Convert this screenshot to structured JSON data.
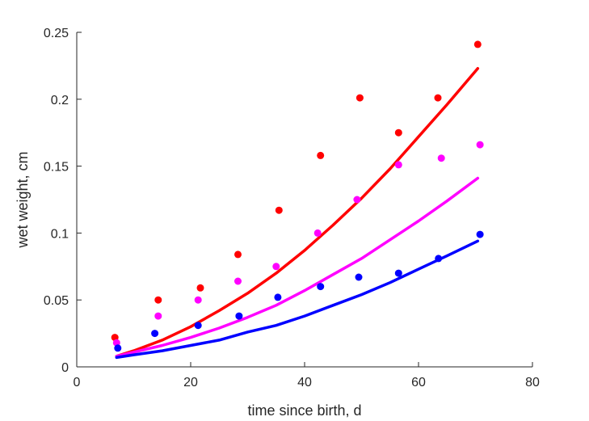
{
  "chart_data": {
    "type": "scatter",
    "title": "",
    "xlabel": "time since birth, d",
    "ylabel": "wet weight, cm",
    "xlim": [
      0,
      80
    ],
    "ylim": [
      0,
      0.25
    ],
    "xticks": [
      0,
      20,
      40,
      60,
      80
    ],
    "yticks": [
      0,
      0.05,
      0.1,
      0.15,
      0.2,
      0.25
    ],
    "xtick_labels": [
      "0",
      "20",
      "40",
      "60",
      "80"
    ],
    "ytick_labels": [
      "0",
      "0.05",
      "0.1",
      "0.15",
      "0.2",
      "0.25"
    ],
    "grid": false,
    "legend": "none",
    "series": [
      {
        "color": "#ff0000",
        "points": {
          "x": [
            6.7,
            14.3,
            21.7,
            28.3,
            35.5,
            42.8,
            49.7,
            56.5,
            63.4,
            70.4
          ],
          "y": [
            0.022,
            0.05,
            0.059,
            0.084,
            0.117,
            0.158,
            0.201,
            0.175,
            0.201,
            0.241
          ]
        },
        "fit": {
          "x": [
            7,
            10,
            15,
            20,
            25,
            30,
            35,
            40,
            45,
            50,
            55,
            60,
            65,
            70.4
          ],
          "y": [
            0.008,
            0.012,
            0.02,
            0.03,
            0.042,
            0.055,
            0.07,
            0.087,
            0.106,
            0.126,
            0.148,
            0.172,
            0.196,
            0.223
          ]
        }
      },
      {
        "color": "#ff00ff",
        "points": {
          "x": [
            7.0,
            14.3,
            21.3,
            28.3,
            35.0,
            42.3,
            49.2,
            56.5,
            64.0,
            70.8
          ],
          "y": [
            0.018,
            0.038,
            0.05,
            0.064,
            0.075,
            0.1,
            0.125,
            0.151,
            0.156,
            0.166
          ]
        },
        "fit": {
          "x": [
            7,
            10,
            15,
            20,
            25,
            30,
            35,
            40,
            45,
            50,
            55,
            60,
            65,
            70.4
          ],
          "y": [
            0.008,
            0.011,
            0.016,
            0.022,
            0.029,
            0.037,
            0.046,
            0.057,
            0.069,
            0.081,
            0.095,
            0.109,
            0.124,
            0.141
          ]
        }
      },
      {
        "color": "#0000ff",
        "points": {
          "x": [
            7.2,
            13.7,
            21.3,
            28.5,
            35.3,
            42.8,
            49.5,
            56.5,
            63.5,
            70.8
          ],
          "y": [
            0.014,
            0.025,
            0.031,
            0.038,
            0.052,
            0.06,
            0.067,
            0.07,
            0.081,
            0.099
          ]
        },
        "fit": {
          "x": [
            7,
            10,
            15,
            20,
            25,
            30,
            35,
            40,
            45,
            50,
            55,
            60,
            65,
            70.4
          ],
          "y": [
            0.007,
            0.009,
            0.012,
            0.016,
            0.02,
            0.026,
            0.031,
            0.038,
            0.046,
            0.054,
            0.063,
            0.073,
            0.083,
            0.094
          ]
        }
      }
    ]
  }
}
